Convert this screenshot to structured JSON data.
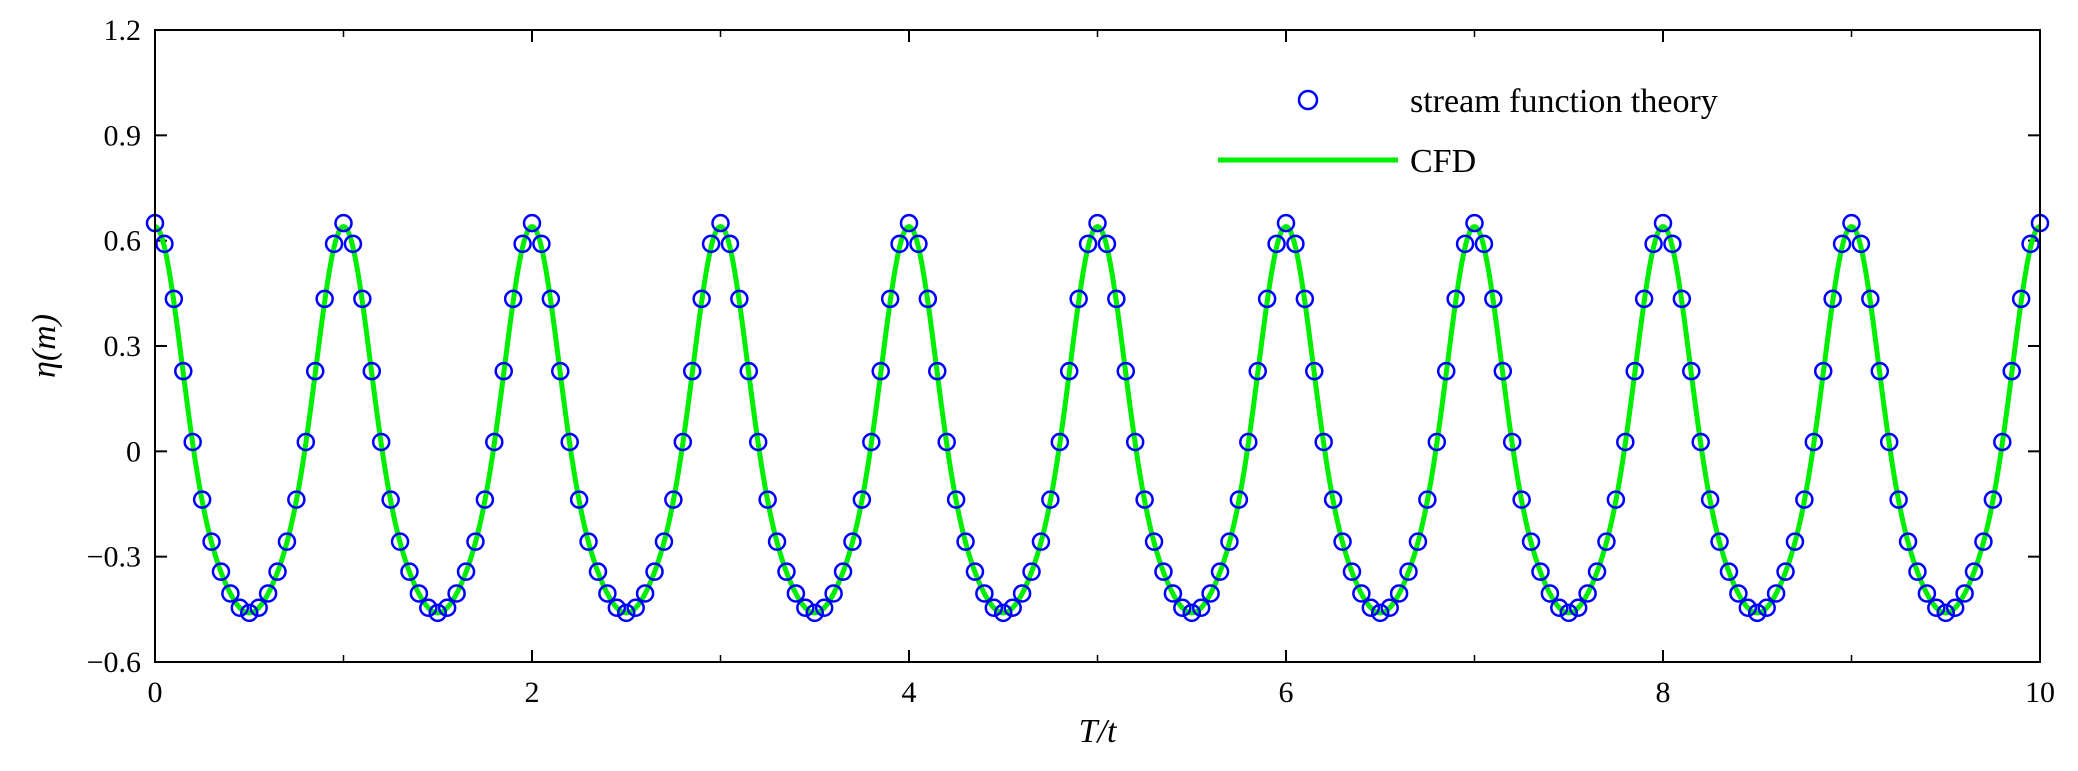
{
  "chart_data": {
    "type": "line",
    "xlabel": "T/t",
    "ylabel": "η(m)",
    "xlim": [
      0,
      10
    ],
    "ylim": [
      -0.6,
      1.2
    ],
    "xticks": [
      "0",
      "2",
      "4",
      "6",
      "8",
      "10"
    ],
    "yticks": [
      "−0.6",
      "−0.3",
      "0",
      "0.3",
      "0.6",
      "0.9",
      "1.2"
    ],
    "grid": false,
    "legend_position": "top-right",
    "series": [
      {
        "name": "stream function theory",
        "style": "markers",
        "marker": "circle-open",
        "color": "#0000ff",
        "model": "nonlinear periodic wave, period 1",
        "crest": 0.65,
        "trough": -0.46,
        "x_step": 0.05,
        "x_range": [
          0,
          10
        ]
      },
      {
        "name": "CFD",
        "style": "line",
        "color": "#00ee00",
        "model": "nonlinear periodic wave, period 1",
        "crest": 0.64,
        "trough": -0.46,
        "x_range": [
          0,
          10
        ]
      }
    ]
  }
}
